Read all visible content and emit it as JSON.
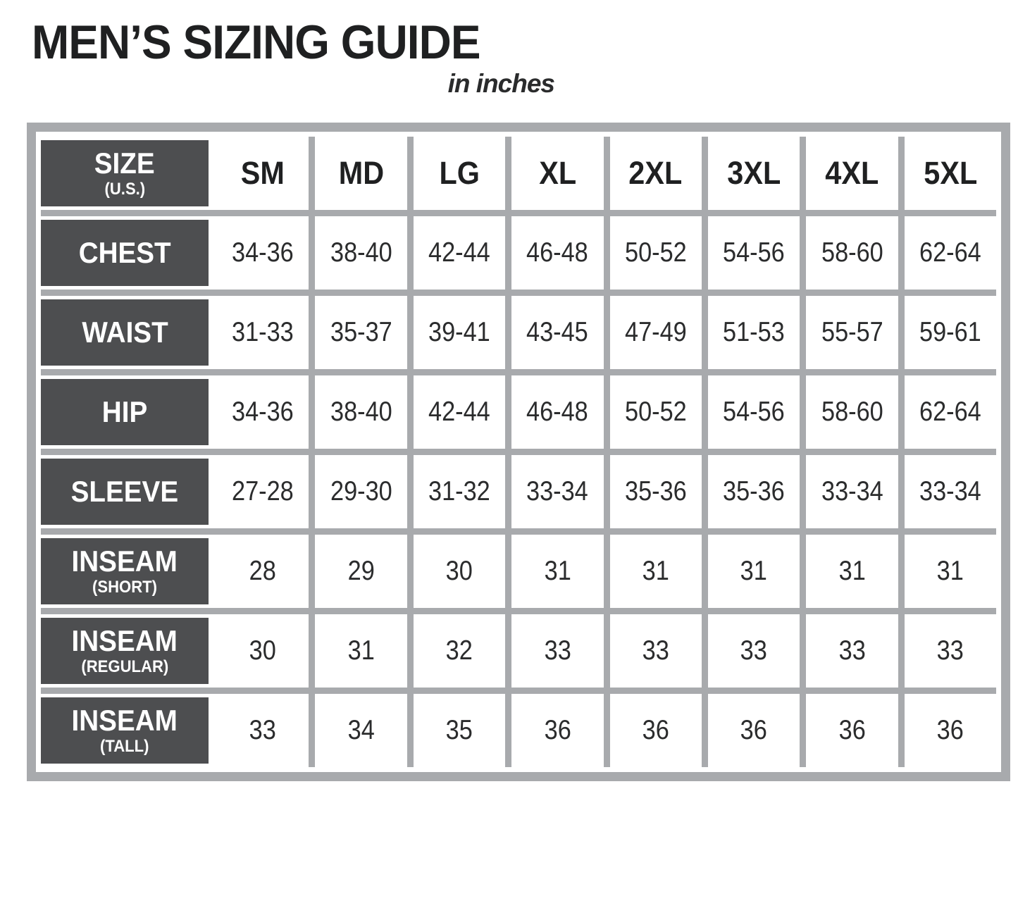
{
  "title": "MEN’S SIZING GUIDE",
  "subtitle": "in inches",
  "colors": {
    "label_background": "#4d4e50",
    "grid_gray": "#a8aaad",
    "text_black": "#1f2021",
    "label_text": "#ffffff",
    "page_background": "#ffffff"
  },
  "table": {
    "header": {
      "label": "SIZE",
      "sublabel": "(U.S.)",
      "sizes": [
        "SM",
        "MD",
        "LG",
        "XL",
        "2XL",
        "3XL",
        "4XL",
        "5XL"
      ]
    },
    "rows": [
      {
        "label": "CHEST",
        "sublabel": "",
        "values": [
          "34-36",
          "38-40",
          "42-44",
          "46-48",
          "50-52",
          "54-56",
          "58-60",
          "62-64"
        ]
      },
      {
        "label": "WAIST",
        "sublabel": "",
        "values": [
          "31-33",
          "35-37",
          "39-41",
          "43-45",
          "47-49",
          "51-53",
          "55-57",
          "59-61"
        ]
      },
      {
        "label": "HIP",
        "sublabel": "",
        "values": [
          "34-36",
          "38-40",
          "42-44",
          "46-48",
          "50-52",
          "54-56",
          "58-60",
          "62-64"
        ]
      },
      {
        "label": "SLEEVE",
        "sublabel": "",
        "values": [
          "27-28",
          "29-30",
          "31-32",
          "33-34",
          "35-36",
          "35-36",
          "33-34",
          "33-34"
        ]
      },
      {
        "label": "INSEAM",
        "sublabel": "(SHORT)",
        "values": [
          "28",
          "29",
          "30",
          "31",
          "31",
          "31",
          "31",
          "31"
        ]
      },
      {
        "label": "INSEAM",
        "sublabel": "(REGULAR)",
        "values": [
          "30",
          "31",
          "32",
          "33",
          "33",
          "33",
          "33",
          "33"
        ]
      },
      {
        "label": "INSEAM",
        "sublabel": "(TALL)",
        "values": [
          "33",
          "34",
          "35",
          "36",
          "36",
          "36",
          "36",
          "36"
        ]
      }
    ]
  }
}
